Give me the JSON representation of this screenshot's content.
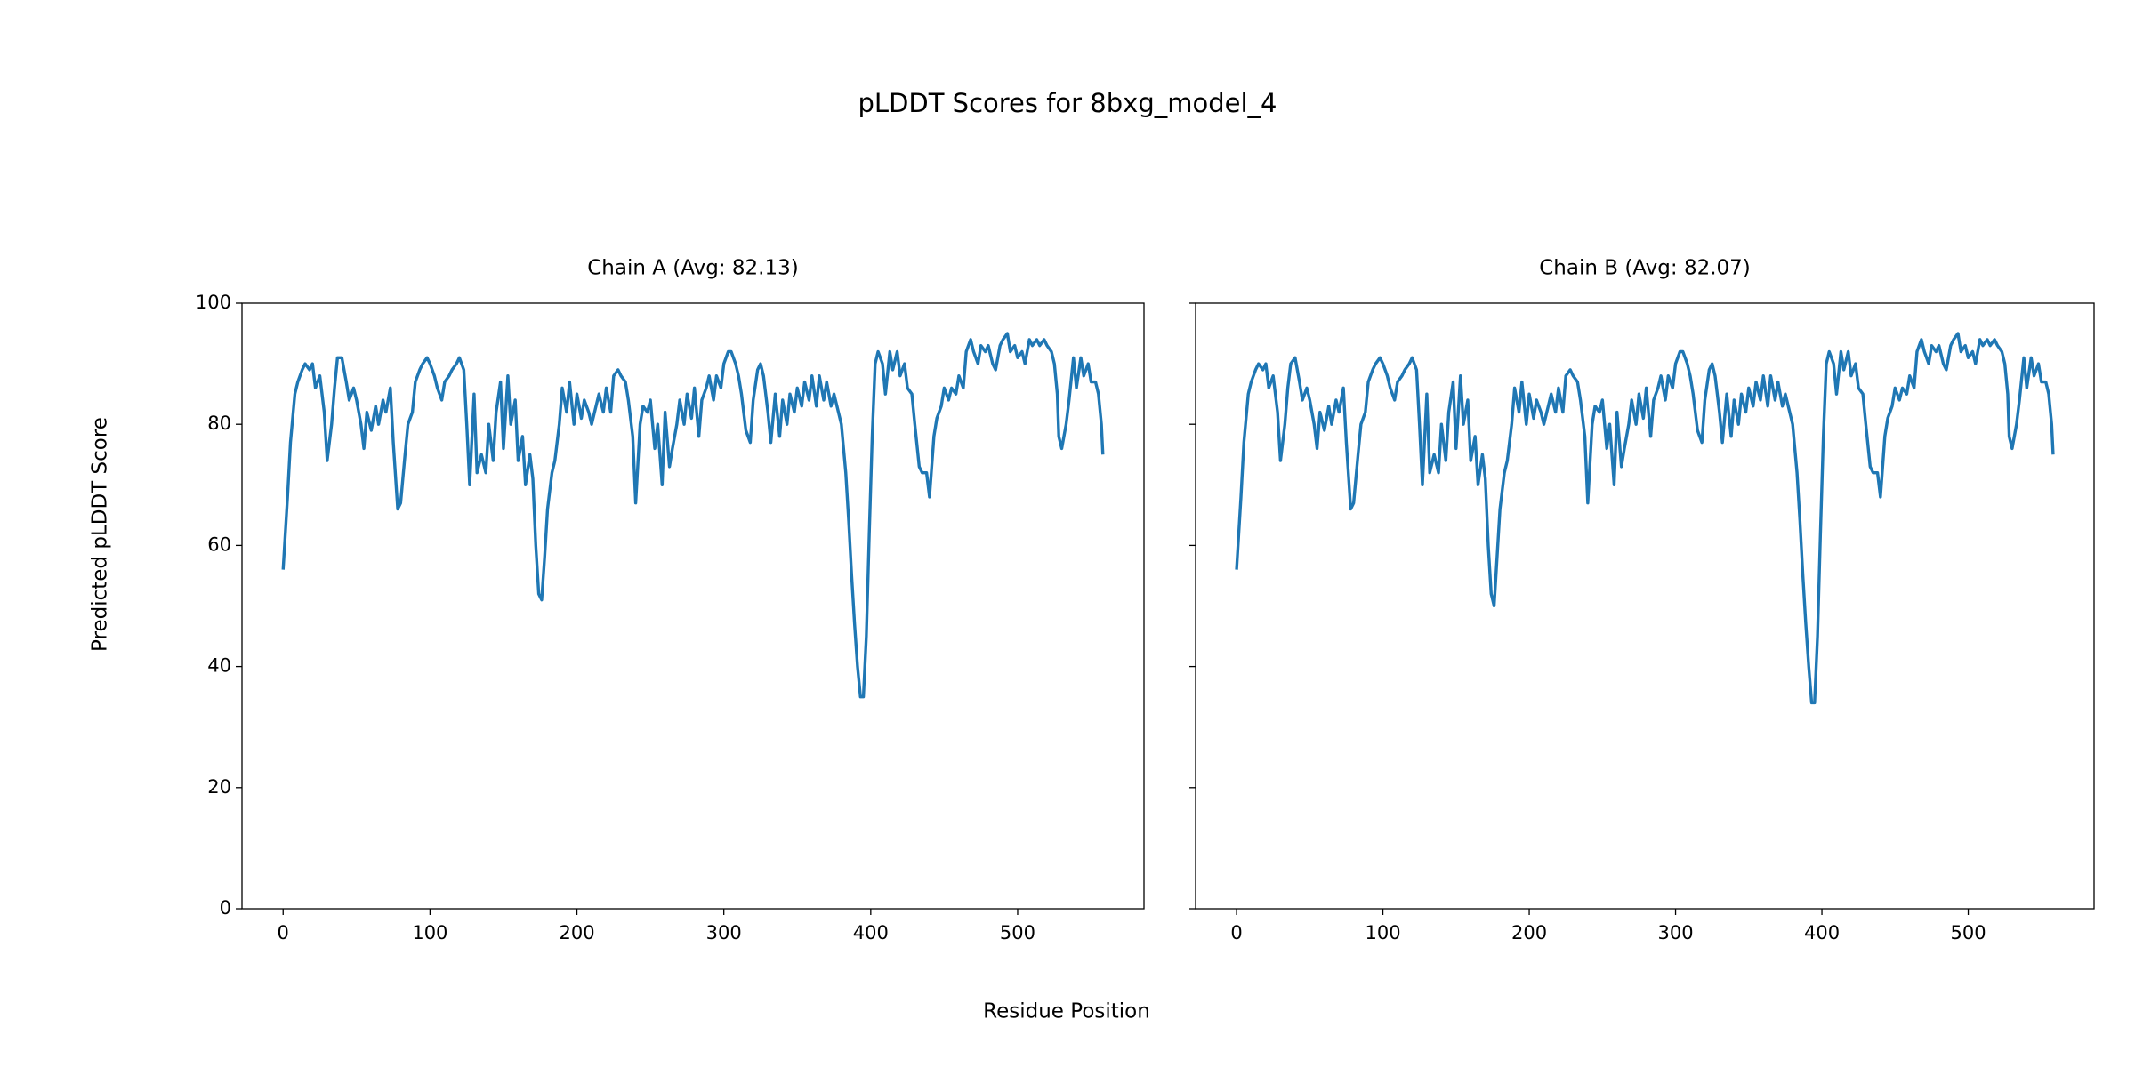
{
  "title": "pLDDT Scores for 8bxg_model_4",
  "xlabel": "Residue Position",
  "ylabel": "Predicted pLDDT Score",
  "chart_data": [
    {
      "type": "line",
      "title": "Chain A (Avg: 82.13)",
      "color": "#1f77b4",
      "xlim": [
        -28,
        586
      ],
      "ylim": [
        0,
        100
      ],
      "xticks": [
        0,
        100,
        200,
        300,
        400,
        500
      ],
      "yticks": [
        0,
        20,
        40,
        60,
        80,
        100
      ],
      "show_ytick_labels": true,
      "x": [
        0,
        3,
        5,
        8,
        10,
        13,
        15,
        18,
        20,
        22,
        25,
        28,
        30,
        33,
        35,
        37,
        40,
        43,
        45,
        48,
        50,
        53,
        55,
        57,
        60,
        63,
        65,
        68,
        70,
        73,
        75,
        78,
        80,
        83,
        85,
        88,
        90,
        93,
        95,
        98,
        100,
        103,
        105,
        108,
        110,
        113,
        115,
        118,
        120,
        123,
        125,
        127,
        130,
        132,
        135,
        138,
        140,
        143,
        145,
        148,
        150,
        153,
        155,
        158,
        160,
        163,
        165,
        168,
        170,
        172,
        174,
        176,
        178,
        180,
        183,
        185,
        188,
        190,
        193,
        195,
        198,
        200,
        203,
        205,
        208,
        210,
        213,
        215,
        218,
        220,
        223,
        225,
        228,
        230,
        233,
        235,
        238,
        240,
        243,
        245,
        248,
        250,
        253,
        255,
        258,
        260,
        263,
        265,
        268,
        270,
        273,
        275,
        278,
        280,
        283,
        285,
        288,
        290,
        293,
        295,
        298,
        300,
        303,
        305,
        308,
        310,
        312,
        315,
        318,
        320,
        323,
        325,
        327,
        330,
        332,
        335,
        338,
        340,
        343,
        345,
        348,
        350,
        353,
        355,
        358,
        360,
        363,
        365,
        368,
        370,
        373,
        375,
        378,
        380,
        383,
        385,
        387,
        389,
        391,
        393,
        395,
        397,
        399,
        401,
        403,
        405,
        408,
        410,
        413,
        415,
        418,
        420,
        423,
        425,
        428,
        430,
        433,
        435,
        438,
        440,
        443,
        445,
        448,
        450,
        453,
        455,
        458,
        460,
        463,
        465,
        468,
        470,
        473,
        475,
        478,
        480,
        483,
        485,
        488,
        490,
        493,
        495,
        498,
        500,
        503,
        505,
        508,
        510,
        513,
        515,
        518,
        520,
        523,
        525,
        527,
        528,
        530,
        533,
        535,
        538,
        540,
        543,
        545,
        548,
        550,
        553,
        555,
        557,
        558
      ],
      "values": [
        56,
        68,
        77,
        85,
        87,
        89,
        90,
        89,
        90,
        86,
        88,
        82,
        74,
        80,
        86,
        91,
        91,
        87,
        84,
        86,
        84,
        80,
        76,
        82,
        79,
        83,
        80,
        84,
        82,
        86,
        77,
        66,
        67,
        75,
        80,
        82,
        87,
        89,
        90,
        91,
        90,
        88,
        86,
        84,
        87,
        88,
        89,
        90,
        91,
        89,
        80,
        70,
        85,
        72,
        75,
        72,
        80,
        74,
        82,
        87,
        76,
        88,
        80,
        84,
        74,
        78,
        70,
        75,
        71,
        60,
        52,
        51,
        58,
        66,
        72,
        74,
        80,
        86,
        82,
        87,
        80,
        85,
        81,
        84,
        82,
        80,
        83,
        85,
        82,
        86,
        82,
        88,
        89,
        88,
        87,
        84,
        78,
        67,
        80,
        83,
        82,
        84,
        76,
        80,
        70,
        82,
        73,
        76,
        80,
        84,
        80,
        85,
        81,
        86,
        78,
        84,
        86,
        88,
        84,
        88,
        86,
        90,
        92,
        92,
        90,
        88,
        85,
        79,
        77,
        84,
        89,
        90,
        88,
        82,
        77,
        85,
        78,
        84,
        80,
        85,
        82,
        86,
        83,
        87,
        84,
        88,
        83,
        88,
        84,
        87,
        83,
        85,
        82,
        80,
        72,
        64,
        55,
        47,
        40,
        35,
        35,
        45,
        62,
        78,
        90,
        92,
        90,
        85,
        92,
        89,
        92,
        88,
        90,
        86,
        85,
        80,
        73,
        72,
        72,
        68,
        78,
        81,
        83,
        86,
        84,
        86,
        85,
        88,
        86,
        92,
        94,
        92,
        90,
        93,
        92,
        93,
        90,
        89,
        93,
        94,
        95,
        92,
        93,
        91,
        92,
        90,
        94,
        93,
        94,
        93,
        94,
        93,
        92,
        90,
        85,
        78,
        76,
        80,
        84,
        91,
        86,
        91,
        88,
        90,
        87,
        87,
        85,
        80,
        75
      ]
    },
    {
      "type": "line",
      "title": "Chain B (Avg: 82.07)",
      "color": "#1f77b4",
      "xlim": [
        -28,
        586
      ],
      "ylim": [
        0,
        100
      ],
      "xticks": [
        0,
        100,
        200,
        300,
        400,
        500
      ],
      "yticks": [
        0,
        20,
        40,
        60,
        80,
        100
      ],
      "show_ytick_labels": false,
      "x": [
        0,
        3,
        5,
        8,
        10,
        13,
        15,
        18,
        20,
        22,
        25,
        28,
        30,
        33,
        35,
        37,
        40,
        43,
        45,
        48,
        50,
        53,
        55,
        57,
        60,
        63,
        65,
        68,
        70,
        73,
        75,
        78,
        80,
        83,
        85,
        88,
        90,
        93,
        95,
        98,
        100,
        103,
        105,
        108,
        110,
        113,
        115,
        118,
        120,
        123,
        125,
        127,
        130,
        132,
        135,
        138,
        140,
        143,
        145,
        148,
        150,
        153,
        155,
        158,
        160,
        163,
        165,
        168,
        170,
        172,
        174,
        176,
        178,
        180,
        183,
        185,
        188,
        190,
        193,
        195,
        198,
        200,
        203,
        205,
        208,
        210,
        213,
        215,
        218,
        220,
        223,
        225,
        228,
        230,
        233,
        235,
        238,
        240,
        243,
        245,
        248,
        250,
        253,
        255,
        258,
        260,
        263,
        265,
        268,
        270,
        273,
        275,
        278,
        280,
        283,
        285,
        288,
        290,
        293,
        295,
        298,
        300,
        303,
        305,
        308,
        310,
        312,
        315,
        318,
        320,
        323,
        325,
        327,
        330,
        332,
        335,
        338,
        340,
        343,
        345,
        348,
        350,
        353,
        355,
        358,
        360,
        363,
        365,
        368,
        370,
        373,
        375,
        378,
        380,
        383,
        385,
        387,
        389,
        391,
        393,
        395,
        397,
        399,
        401,
        403,
        405,
        408,
        410,
        413,
        415,
        418,
        420,
        423,
        425,
        428,
        430,
        433,
        435,
        438,
        440,
        443,
        445,
        448,
        450,
        453,
        455,
        458,
        460,
        463,
        465,
        468,
        470,
        473,
        475,
        478,
        480,
        483,
        485,
        488,
        490,
        493,
        495,
        498,
        500,
        503,
        505,
        508,
        510,
        513,
        515,
        518,
        520,
        523,
        525,
        527,
        528,
        530,
        533,
        535,
        538,
        540,
        543,
        545,
        548,
        550,
        553,
        555,
        557,
        558
      ],
      "values": [
        56,
        68,
        77,
        85,
        87,
        89,
        90,
        89,
        90,
        86,
        88,
        82,
        74,
        80,
        86,
        90,
        91,
        87,
        84,
        86,
        84,
        80,
        76,
        82,
        79,
        83,
        80,
        84,
        82,
        86,
        77,
        66,
        67,
        75,
        80,
        82,
        87,
        89,
        90,
        91,
        90,
        88,
        86,
        84,
        87,
        88,
        89,
        90,
        91,
        89,
        80,
        70,
        85,
        72,
        75,
        72,
        80,
        74,
        82,
        87,
        76,
        88,
        80,
        84,
        74,
        78,
        70,
        75,
        71,
        60,
        52,
        50,
        58,
        66,
        72,
        74,
        80,
        86,
        82,
        87,
        80,
        85,
        81,
        84,
        82,
        80,
        83,
        85,
        82,
        86,
        82,
        88,
        89,
        88,
        87,
        84,
        78,
        67,
        80,
        83,
        82,
        84,
        76,
        80,
        70,
        82,
        73,
        76,
        80,
        84,
        80,
        85,
        81,
        86,
        78,
        84,
        86,
        88,
        84,
        88,
        86,
        90,
        92,
        92,
        90,
        88,
        85,
        79,
        77,
        84,
        89,
        90,
        88,
        82,
        77,
        85,
        78,
        84,
        80,
        85,
        82,
        86,
        83,
        87,
        84,
        88,
        83,
        88,
        84,
        87,
        83,
        85,
        82,
        80,
        72,
        64,
        55,
        47,
        40,
        34,
        34,
        45,
        62,
        78,
        90,
        92,
        90,
        85,
        92,
        89,
        92,
        88,
        90,
        86,
        85,
        80,
        73,
        72,
        72,
        68,
        78,
        81,
        83,
        86,
        84,
        86,
        85,
        88,
        86,
        92,
        94,
        92,
        90,
        93,
        92,
        93,
        90,
        89,
        93,
        94,
        95,
        92,
        93,
        91,
        92,
        90,
        94,
        93,
        94,
        93,
        94,
        93,
        92,
        90,
        85,
        78,
        76,
        80,
        84,
        91,
        86,
        91,
        88,
        90,
        87,
        87,
        85,
        80,
        75
      ]
    }
  ]
}
